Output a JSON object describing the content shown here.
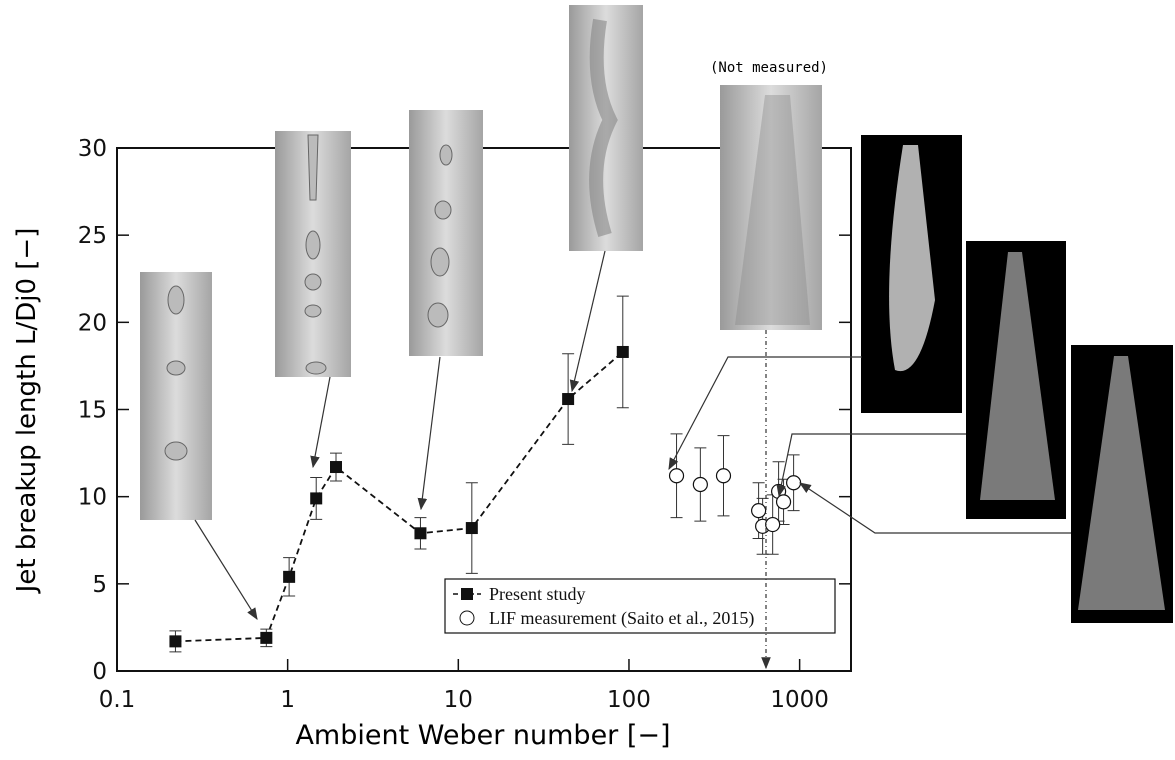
{
  "chart_data": {
    "type": "scatter",
    "x_label": "Ambient Weber number [−]",
    "y_label": "Jet breakup length L/Dj0 [−]",
    "annotation": "(Not measured)",
    "xlog": true,
    "xlim": [
      0.1,
      2000
    ],
    "xticks": [
      0.1,
      1,
      10,
      100,
      1000
    ],
    "ylim": [
      0,
      30
    ],
    "yticks": [
      0,
      5,
      10,
      15,
      20,
      25,
      30
    ],
    "legend": "lower right",
    "series": [
      {
        "name": "Present study",
        "color": "#111111",
        "marker": "square",
        "line": "dashed",
        "x": [
          0.22,
          0.75,
          1.02,
          1.47,
          1.92,
          6,
          12,
          44,
          92
        ],
        "values": [
          1.7,
          1.9,
          5.4,
          9.9,
          11.7,
          7.9,
          8.2,
          15.6,
          18.3
        ],
        "errors": [
          0.6,
          0.5,
          1.1,
          1.2,
          0.8,
          0.9,
          2.6,
          2.6,
          3.2
        ]
      },
      {
        "name": "LIF measurement (Saito et al., 2015)",
        "color": "#111111",
        "marker": "open-circle",
        "line": "none",
        "x": [
          190,
          262,
          358,
          575,
          607,
          695,
          753,
          805,
          922
        ],
        "values": [
          11.2,
          10.7,
          11.2,
          9.2,
          8.3,
          8.4,
          10.3,
          9.7,
          10.8
        ],
        "errors": [
          2.4,
          2.1,
          2.3,
          1.6,
          1.6,
          1.7,
          1.7,
          1.3,
          1.6
        ]
      }
    ]
  }
}
